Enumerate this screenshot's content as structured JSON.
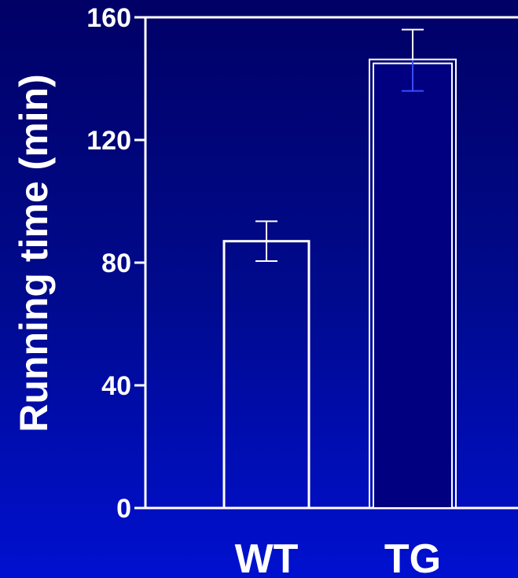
{
  "chart_data": {
    "type": "bar",
    "categories": [
      "WT",
      "TG"
    ],
    "values": [
      87,
      146
    ],
    "errors": [
      6.5,
      10
    ],
    "ylabel": "Running time (min)",
    "xlabel": "",
    "ylim": [
      0,
      160
    ],
    "yticks": [
      "0",
      "40",
      "80",
      "120",
      "160"
    ],
    "ytick_values": [
      0,
      40,
      80,
      120,
      160
    ],
    "bar_colors": [
      "#ffffff",
      "#000080"
    ],
    "bar_outline": "#ffffff",
    "error_colors": [
      "#ffffff",
      "#ffffff"
    ],
    "error_lower_colors": [
      "#ffffff",
      "#3a4cff"
    ],
    "axis_color": "#ffffff",
    "background_top": "#000066",
    "background_bottom": "#0010d0",
    "grid": false
  }
}
